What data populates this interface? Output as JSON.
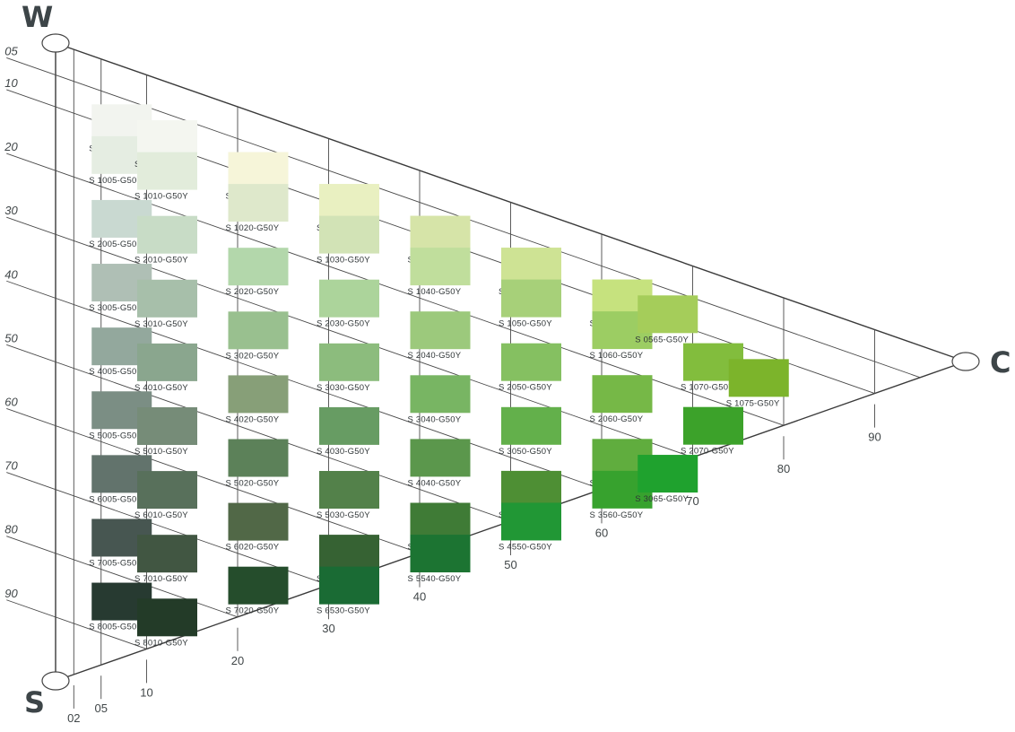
{
  "corners": {
    "white": "W",
    "black": "S",
    "chromatic": "C"
  },
  "blackness_labels": [
    "05",
    "10",
    "20",
    "30",
    "40",
    "50",
    "60",
    "70",
    "80",
    "90"
  ],
  "chromaticness_labels": [
    "02",
    "05",
    "10",
    "20",
    "30",
    "40",
    "50",
    "60",
    "70",
    "80",
    "90"
  ],
  "columns": [
    {
      "chroma": "05",
      "swatches": [
        {
          "label": "S 0505-G50Y",
          "color": "#f2f4ef"
        },
        {
          "label": "S 1005-G50Y",
          "color": "#e5ede2"
        },
        {
          "label": "S 2005-G50Y",
          "color": "#c9d9d1"
        },
        {
          "label": "S 3005-G50Y",
          "color": "#afbfb5"
        },
        {
          "label": "S 4005-G50Y",
          "color": "#93a89d"
        },
        {
          "label": "S 5005-G50Y",
          "color": "#7b8e84"
        },
        {
          "label": "S 6005-G50Y",
          "color": "#62736c"
        },
        {
          "label": "S 7005-G50Y",
          "color": "#475651"
        },
        {
          "label": "S 8005-G50Y",
          "color": "#273a31"
        }
      ]
    },
    {
      "chroma": "10",
      "swatches": [
        {
          "label": "S 0510-G50Y",
          "color": "#f4f6f0"
        },
        {
          "label": "S 1010-G50Y",
          "color": "#e2ecdb"
        },
        {
          "label": "S 2010-G50Y",
          "color": "#c8dcc6"
        },
        {
          "label": "S 3010-G50Y",
          "color": "#a7bfaa"
        },
        {
          "label": "S 4010-G50Y",
          "color": "#8aa68e"
        },
        {
          "label": "S 5010-G50Y",
          "color": "#768c78"
        },
        {
          "label": "S 6010-G50Y",
          "color": "#58705b"
        },
        {
          "label": "S 7010-G50Y",
          "color": "#415642"
        },
        {
          "label": "S 8010-G50Y",
          "color": "#233b28"
        }
      ]
    },
    {
      "chroma": "20",
      "swatches": [
        {
          "label": "S 0520-G50Y",
          "color": "#f6f5d9"
        },
        {
          "label": "S 1020-G50Y",
          "color": "#dee8cb"
        },
        {
          "label": "S 2020-G50Y",
          "color": "#b3d7ab"
        },
        {
          "label": "S 3020-G50Y",
          "color": "#99c08f"
        },
        {
          "label": "S 4020-G50Y",
          "color": "#879f78"
        },
        {
          "label": "S 5020-G50Y",
          "color": "#5c8159"
        },
        {
          "label": "S 6020-G50Y",
          "color": "#516847"
        },
        {
          "label": "S 7020-G50Y",
          "color": "#254d2c"
        }
      ]
    },
    {
      "chroma": "30",
      "swatches": [
        {
          "label": "S 0530-G50Y",
          "color": "#e9f0c1"
        },
        {
          "label": "S 1030-G50Y",
          "color": "#d2e3b6"
        },
        {
          "label": "S 2030-G50Y",
          "color": "#acd49b"
        },
        {
          "label": "S 3030-G50Y",
          "color": "#8cbc7d"
        },
        {
          "label": "S 4030-G50Y",
          "color": "#679c63"
        },
        {
          "label": "S 5030-G50Y",
          "color": "#53814a"
        },
        {
          "label": "S 6030-G50Y",
          "color": "#366233"
        },
        {
          "label": "S 6530-G50Y",
          "color": "#1a6b34"
        }
      ]
    },
    {
      "chroma": "40",
      "swatches": [
        {
          "label": "S 0540-G50Y",
          "color": "#d6e4a8"
        },
        {
          "label": "S 1040-G50Y",
          "color": "#c0de9c"
        },
        {
          "label": "S 2040-G50Y",
          "color": "#9cc97c"
        },
        {
          "label": "S 3040-G50Y",
          "color": "#78b563"
        },
        {
          "label": "S 4040-G50Y",
          "color": "#5b974c"
        },
        {
          "label": "S 5040-G50Y",
          "color": "#3f7b36"
        },
        {
          "label": "S 5540-G50Y",
          "color": "#1c7432"
        }
      ]
    },
    {
      "chroma": "50",
      "swatches": [
        {
          "label": "S 0550-G50Y",
          "color": "#cee394"
        },
        {
          "label": "S 1050-G50Y",
          "color": "#a7d079"
        },
        {
          "label": "S 2050-G50Y",
          "color": "#85c061"
        },
        {
          "label": "S 3050-G50Y",
          "color": "#63b04b"
        },
        {
          "label": "S 4050-G50Y",
          "color": "#4e8f34"
        },
        {
          "label": "S 4550-G50Y",
          "color": "#219735"
        }
      ]
    },
    {
      "chroma": "60",
      "swatches": [
        {
          "label": "S 0560-G50Y",
          "color": "#c6e27e"
        },
        {
          "label": "S 1060-G50Y",
          "color": "#9ccd63"
        },
        {
          "label": "S 2060-G50Y",
          "color": "#76b847"
        },
        {
          "label": "S 3060-G50Y",
          "color": "#60ad3e"
        },
        {
          "label": "S 3560-G50Y",
          "color": "#37a22e"
        }
      ]
    },
    {
      "chroma": "70",
      "swatches": [
        {
          "label": "S 0565-G50Y",
          "color": "#a5cd5a"
        },
        {
          "label": "S 1070-G50Y",
          "color": "#82bd3d"
        },
        {
          "label": "S 2070-G50Y",
          "color": "#3ca22a"
        },
        {
          "label": "S 3065-G50Y",
          "color": "#1fa22e"
        }
      ]
    },
    {
      "chroma": "80",
      "swatches": [
        {
          "label": "S 1075-G50Y",
          "color": "#7cb42b"
        }
      ]
    }
  ]
}
